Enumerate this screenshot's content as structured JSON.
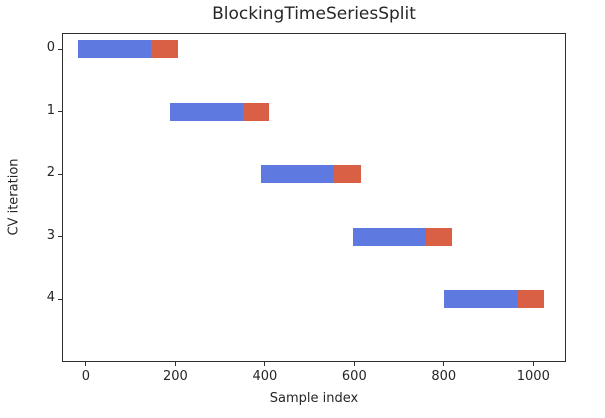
{
  "chart_data": {
    "type": "bar",
    "title": "BlockingTimeSeriesSplit",
    "xlabel": "Sample index",
    "ylabel": "CV iteration",
    "x_tick_labels": [
      "0",
      "200",
      "400",
      "600",
      "800",
      "1000"
    ],
    "x_tick_values": [
      0,
      200,
      400,
      600,
      800,
      1000
    ],
    "y_tick_labels": [
      "0",
      "1",
      "2",
      "3",
      "4"
    ],
    "xlim": [
      -51,
      1075
    ],
    "grid": false,
    "legend_position": "none",
    "n_splits": 5,
    "n_samples": 1024,
    "colors": {
      "train": "#5E79E0",
      "test": "#D95F45"
    },
    "folds": [
      {
        "iteration": "0",
        "train": [
          0,
          164
        ],
        "test": [
          164,
          205
        ]
      },
      {
        "iteration": "1",
        "train": [
          205,
          369
        ],
        "test": [
          369,
          410
        ]
      },
      {
        "iteration": "2",
        "train": [
          410,
          573
        ],
        "test": [
          573,
          614
        ]
      },
      {
        "iteration": "3",
        "train": [
          614,
          778
        ],
        "test": [
          778,
          819
        ]
      },
      {
        "iteration": "4",
        "train": [
          819,
          983
        ],
        "test": [
          983,
          1024
        ]
      }
    ]
  }
}
